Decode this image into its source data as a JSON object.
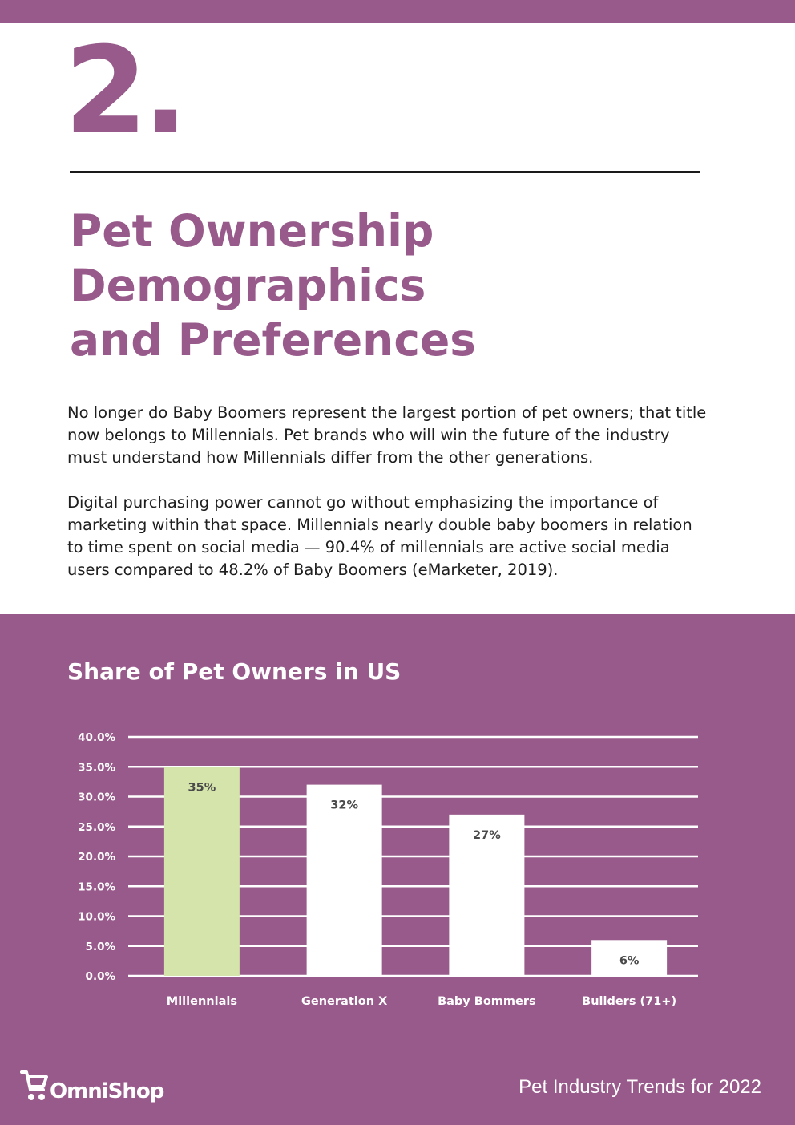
{
  "header": {
    "section_number": "2.",
    "title_lines": [
      "Pet Ownership",
      "Demographics",
      "and Preferences"
    ]
  },
  "body": {
    "paragraph1_lines": [
      "No longer do Baby Boomers represent the largest portion of pet owners; that title",
      "now belongs to Millennials. Pet brands who will win the future of the industry",
      "must understand how Millennials differ from the other generations."
    ],
    "paragraph2_lines": [
      "Digital purchasing power cannot go without emphasizing the importance of",
      "marketing within that space. Millennials nearly double baby boomers in relation",
      "to time spent on social media — 90.4% of millennials are active social media",
      "users compared to 48.2% of Baby Boomers (eMarketer, 2019)."
    ]
  },
  "chart_data": {
    "type": "bar",
    "title": "Share of Pet Owners in US",
    "categories": [
      "Millennials",
      "Generation X",
      "Baby Bommers",
      "Builders (71+)"
    ],
    "values": [
      35,
      32,
      27,
      6
    ],
    "data_labels": [
      "35%",
      "32%",
      "27%",
      "6%"
    ],
    "y_ticks": [
      "0.0%",
      "5.0%",
      "10.0%",
      "15.0%",
      "20.0%",
      "25.0%",
      "30.0%",
      "35.0%",
      "40.0%"
    ],
    "ylim": [
      0,
      40
    ],
    "grid": true,
    "xlabel": "",
    "ylabel": "",
    "bar_colors": [
      "#d4e4ab",
      "#ffffff",
      "#ffffff",
      "#ffffff"
    ],
    "label_color": "#4a4a4a"
  },
  "footer": {
    "brand": "OmniShop",
    "publication": "Pet Industry Trends for 2022"
  },
  "colors": {
    "brand_purple": "#975a8a",
    "highlight_green": "#d4e4ab"
  }
}
